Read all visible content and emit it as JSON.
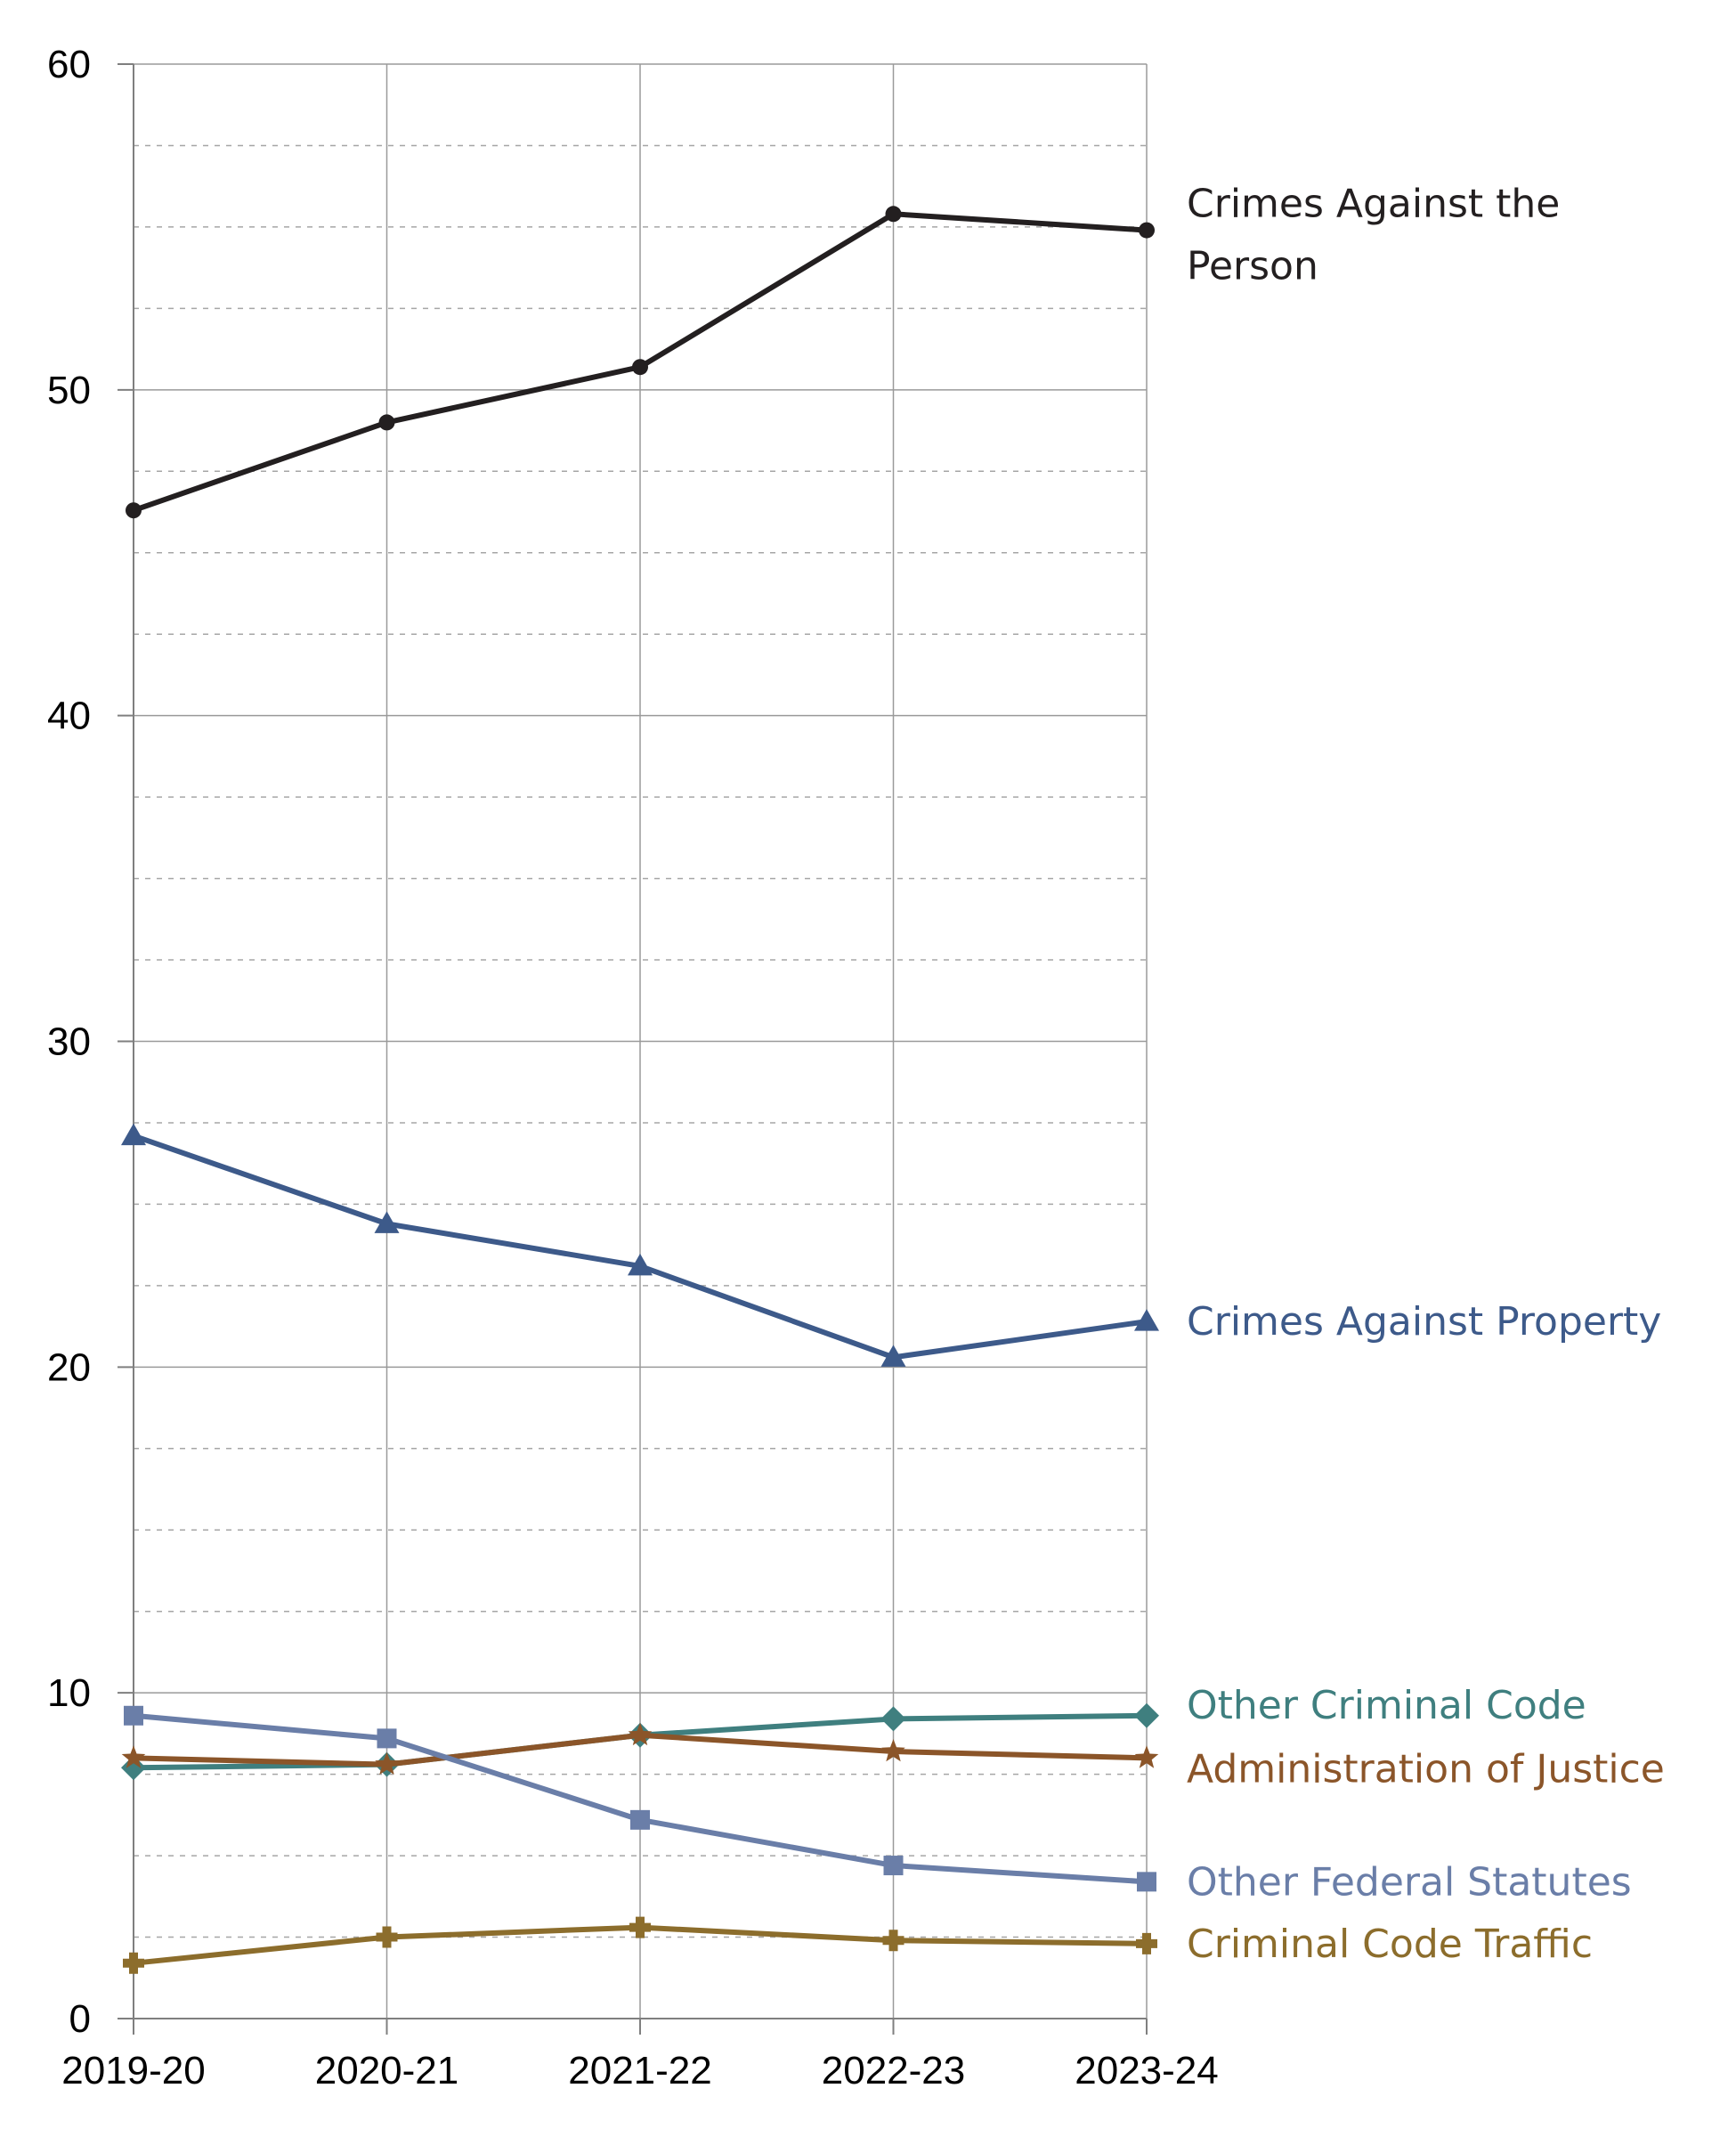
{
  "chart_data": {
    "type": "line",
    "title": "",
    "xlabel": "",
    "ylabel": "",
    "categories": [
      "2019-20",
      "2020-21",
      "2021-22",
      "2022-23",
      "2023-24"
    ],
    "ylim": [
      0,
      60
    ],
    "yticks": [
      0,
      10,
      20,
      30,
      40,
      50,
      60
    ],
    "minor_grid_step": 2.5,
    "grid": true,
    "legend": "direct labels at right end of lines",
    "series": [
      {
        "name": "Crimes Against the Person",
        "label_lines": [
          "Crimes Against the",
          "Person"
        ],
        "values": [
          46.3,
          49.0,
          50.7,
          55.4,
          54.9
        ],
        "color": "#231f20",
        "marker": "circle"
      },
      {
        "name": "Crimes Against Property",
        "label_lines": [
          "Crimes Against Property"
        ],
        "values": [
          27.1,
          24.4,
          23.1,
          20.3,
          21.4
        ],
        "color": "#3d5a8a",
        "marker": "triangle"
      },
      {
        "name": "Other Criminal Code",
        "label_lines": [
          "Other Criminal Code"
        ],
        "values": [
          7.7,
          7.8,
          8.7,
          9.2,
          9.3
        ],
        "color": "#3f7f7f",
        "marker": "diamond"
      },
      {
        "name": "Administration of Justice",
        "label_lines": [
          "Administration of Justice"
        ],
        "values": [
          8.0,
          7.8,
          8.7,
          8.2,
          8.0
        ],
        "color": "#8b5529",
        "marker": "star"
      },
      {
        "name": "Other Federal Statutes",
        "label_lines": [
          "Other Federal Statutes"
        ],
        "values": [
          9.3,
          8.6,
          6.1,
          4.7,
          4.2
        ],
        "color": "#6a7ea8",
        "marker": "square"
      },
      {
        "name": "Criminal Code Traffic",
        "label_lines": [
          "Criminal Code Traffic"
        ],
        "values": [
          1.7,
          2.5,
          2.8,
          2.4,
          2.3
        ],
        "color": "#8c6d2c",
        "marker": "plus"
      }
    ]
  }
}
